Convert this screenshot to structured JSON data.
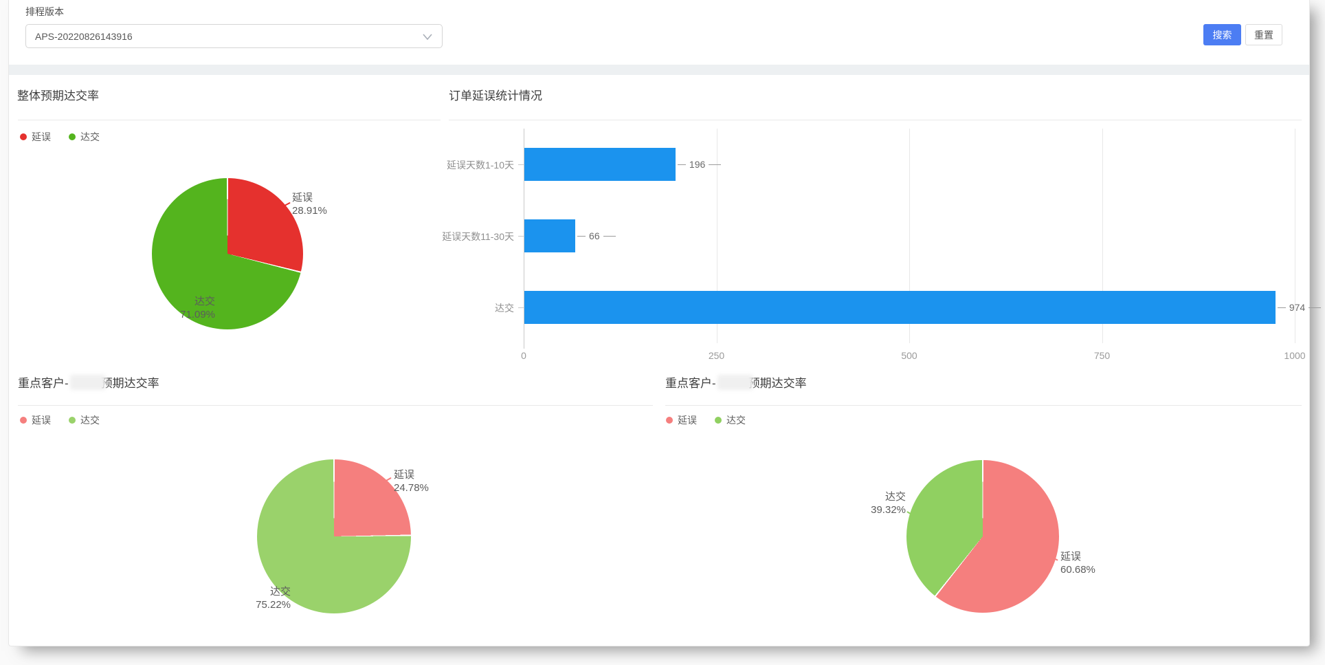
{
  "header": {
    "field_label": "排程版本",
    "select_value": "APS-20220826143916",
    "search_label": "搜索",
    "reset_label": "重置",
    "accent_color": "#4c7df3"
  },
  "chart_data": [
    {
      "id": "overall-delivery-pie",
      "type": "pie",
      "title": "整体预期达交率",
      "legend": [
        {
          "label": "延误",
          "color": "#e5312e"
        },
        {
          "label": "达交",
          "color": "#54b41e"
        }
      ],
      "slices": [
        {
          "name": "延误",
          "value_pct": 28.91,
          "label": "28.91%",
          "color": "#e5312e"
        },
        {
          "name": "达交",
          "value_pct": 71.09,
          "label": "71.09%",
          "color": "#54b41e"
        }
      ]
    },
    {
      "id": "order-delay-bar",
      "type": "bar",
      "title": "订单延误统计情况",
      "orientation": "horizontal",
      "categories": [
        "延误天数1-10天",
        "延误天数11-30天",
        "达交"
      ],
      "values": [
        196,
        66,
        974
      ],
      "bar_color": "#1b93ee",
      "xlim": [
        0,
        1000
      ],
      "xticks": [
        0,
        250,
        500,
        750,
        1000
      ]
    },
    {
      "id": "key-customer-1-pie",
      "type": "pie",
      "title_prefix": "重点客户-",
      "title_suffix": "预期达交率",
      "redacted": true,
      "legend": [
        {
          "label": "延误",
          "color": "#f57f7e"
        },
        {
          "label": "达交",
          "color": "#9ad26b"
        }
      ],
      "slices": [
        {
          "name": "延误",
          "value_pct": 24.78,
          "label": "24.78%",
          "color": "#f57f7e"
        },
        {
          "name": "达交",
          "value_pct": 75.22,
          "label": "75.22%",
          "color": "#9ad26b"
        }
      ]
    },
    {
      "id": "key-customer-2-pie",
      "type": "pie",
      "title_prefix": "重点客户-",
      "title_suffix": "预期达交率",
      "redacted": true,
      "legend": [
        {
          "label": "延误",
          "color": "#f57f7e"
        },
        {
          "label": "达交",
          "color": "#90d061"
        }
      ],
      "slices": [
        {
          "name": "延误",
          "value_pct": 60.68,
          "label": "60.68%",
          "color": "#f57f7e"
        },
        {
          "name": "达交",
          "value_pct": 39.32,
          "label": "39.32%",
          "color": "#90d061"
        }
      ]
    }
  ]
}
